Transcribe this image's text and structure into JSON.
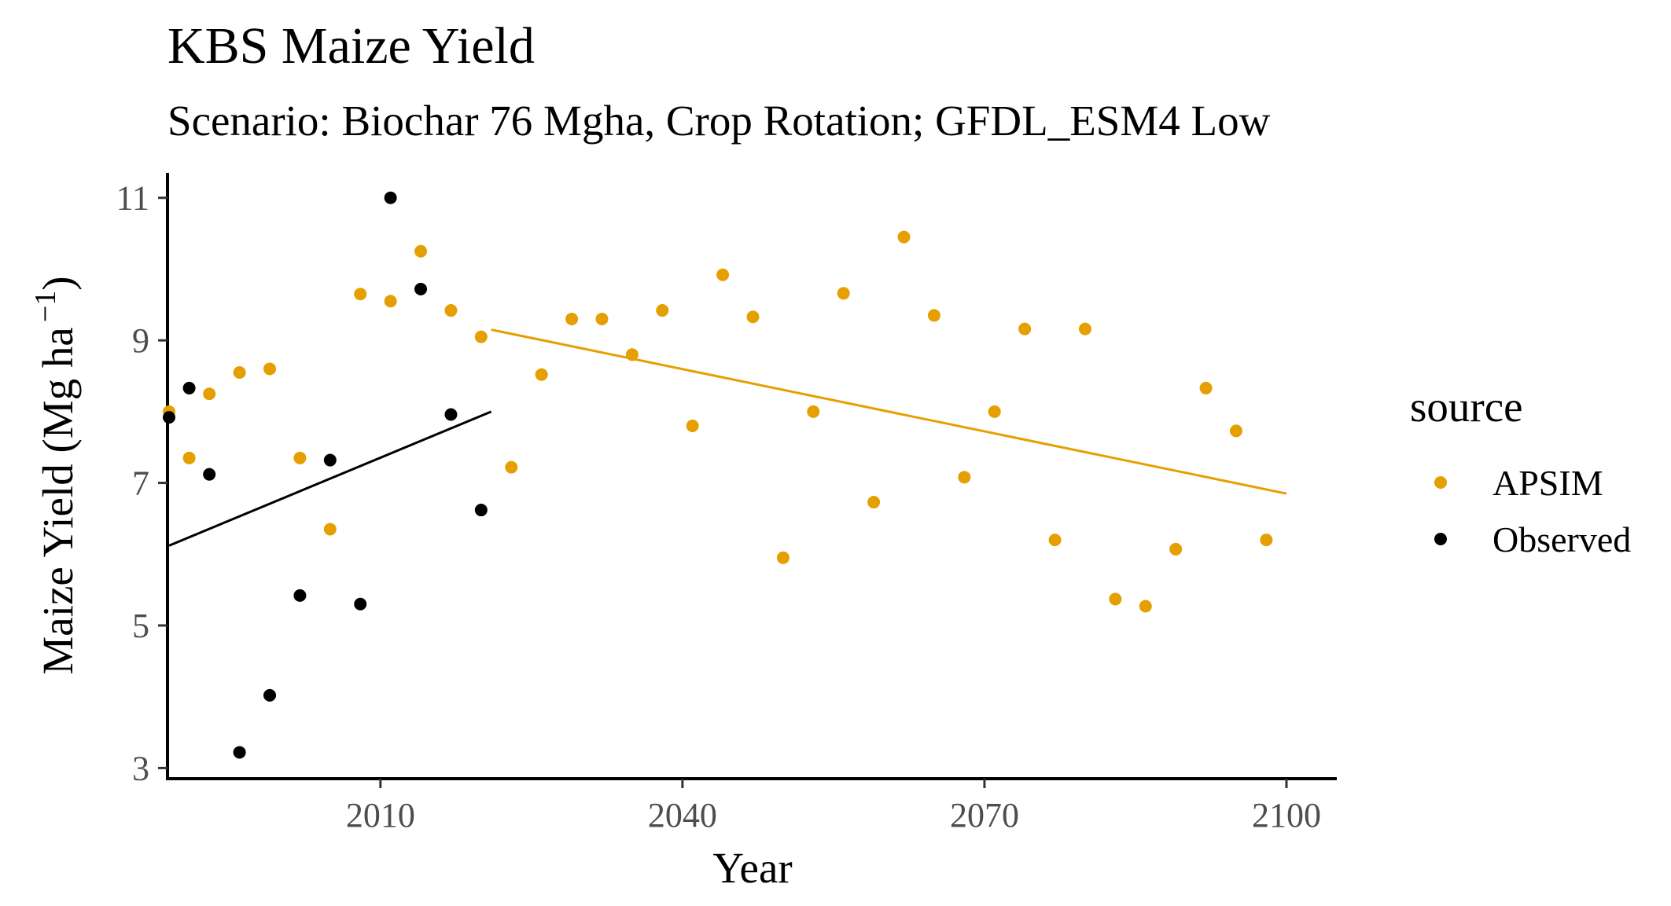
{
  "chart_data": {
    "type": "scatter",
    "title": "KBS Maize Yield",
    "subtitle": "Scenario: Biochar 76 Mgha, Crop Rotation; GFDL_ESM4 Low",
    "xlabel": "Year",
    "ylabel_main": "Maize Yield (Mg ha",
    "ylabel_sup": "−1",
    "ylabel_close": ")",
    "xlim": [
      1989,
      2105
    ],
    "ylim": [
      2.85,
      11.35
    ],
    "x_ticks": [
      2010,
      2040,
      2070,
      2100
    ],
    "x_tick_labels": [
      "2010",
      "2040",
      "2070",
      "2100"
    ],
    "y_ticks": [
      3,
      5,
      7,
      9,
      11
    ],
    "y_tick_labels": [
      "3",
      "5",
      "7",
      "9",
      "11"
    ],
    "grid": false,
    "legend": {
      "title": "source",
      "position": "right"
    },
    "series": [
      {
        "name": "APSIM",
        "color": "#E69F00",
        "points": [
          [
            1989,
            8.0
          ],
          [
            1991,
            7.35
          ],
          [
            1993,
            8.25
          ],
          [
            1996,
            8.55
          ],
          [
            1999,
            8.6
          ],
          [
            2002,
            7.35
          ],
          [
            2005,
            6.35
          ],
          [
            2008,
            9.65
          ],
          [
            2011,
            9.55
          ],
          [
            2014,
            10.25
          ],
          [
            2017,
            9.42
          ],
          [
            2020,
            9.05
          ],
          [
            2023,
            7.22
          ],
          [
            2026,
            8.52
          ],
          [
            2029,
            9.3
          ],
          [
            2032,
            9.3
          ],
          [
            2035,
            8.8
          ],
          [
            2038,
            9.42
          ],
          [
            2041,
            7.8
          ],
          [
            2044,
            9.92
          ],
          [
            2047,
            9.33
          ],
          [
            2050,
            5.95
          ],
          [
            2053,
            8.0
          ],
          [
            2056,
            9.66
          ],
          [
            2059,
            6.73
          ],
          [
            2062,
            10.45
          ],
          [
            2065,
            9.35
          ],
          [
            2068,
            7.08
          ],
          [
            2071,
            8.0
          ],
          [
            2074,
            9.16
          ],
          [
            2077,
            6.2
          ],
          [
            2080,
            9.16
          ],
          [
            2083,
            5.37
          ],
          [
            2086,
            5.27
          ],
          [
            2089,
            6.07
          ],
          [
            2092,
            8.33
          ],
          [
            2095,
            7.73
          ],
          [
            2098,
            6.2
          ]
        ],
        "trend": {
          "x": [
            2021,
            2100
          ],
          "y": [
            9.15,
            6.85
          ]
        }
      },
      {
        "name": "Observed",
        "color": "#000000",
        "points": [
          [
            1989,
            7.92
          ],
          [
            1991,
            8.33
          ],
          [
            1993,
            7.12
          ],
          [
            1996,
            3.22
          ],
          [
            1999,
            4.02
          ],
          [
            2002,
            5.42
          ],
          [
            2005,
            7.32
          ],
          [
            2008,
            5.3
          ],
          [
            2011,
            11.0
          ],
          [
            2014,
            9.72
          ],
          [
            2017,
            7.96
          ],
          [
            2020,
            6.62
          ]
        ],
        "trend": {
          "x": [
            1989,
            2021
          ],
          "y": [
            6.12,
            8.0
          ]
        }
      }
    ]
  }
}
